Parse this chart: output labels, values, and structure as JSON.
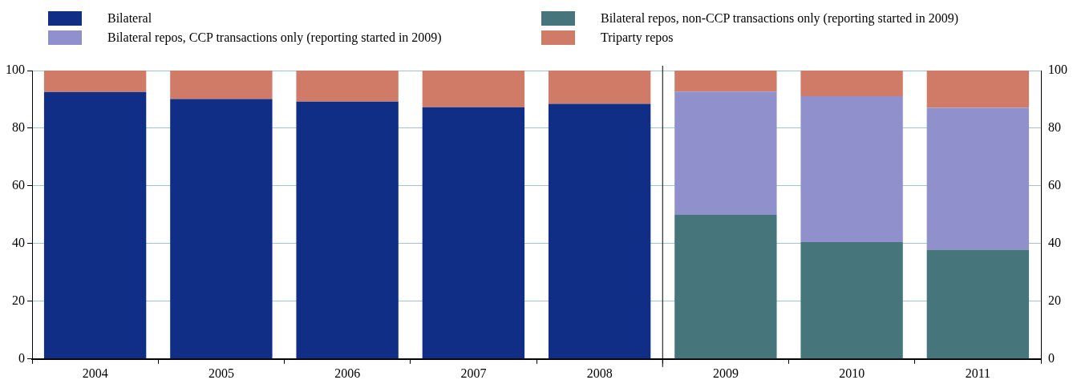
{
  "chart_data": {
    "type": "bar",
    "stacked": true,
    "categories": [
      "2004",
      "2005",
      "2006",
      "2007",
      "2008",
      "2009",
      "2010",
      "2011"
    ],
    "series": [
      {
        "name": "Bilateral",
        "color": "#112e87",
        "values": [
          92.6,
          90.1,
          89.2,
          87.3,
          88.5,
          null,
          null,
          null
        ]
      },
      {
        "name": "Bilateral repos, non-CCP transactions only (reporting started in 2009)",
        "color": "#47757c",
        "values": [
          null,
          null,
          null,
          null,
          null,
          50.0,
          40.5,
          37.9
        ]
      },
      {
        "name": "Bilateral repos, CCP transactions only (reporting started in 2009)",
        "color": "#9090cc",
        "values": [
          null,
          null,
          null,
          null,
          null,
          42.7,
          50.6,
          49.2
        ]
      },
      {
        "name": "Triparty repos",
        "color": "#cf7b67",
        "values": [
          7.4,
          9.9,
          10.8,
          12.7,
          11.5,
          7.3,
          8.9,
          12.9
        ]
      }
    ],
    "ylim": [
      0,
      100
    ],
    "yticks": [
      0,
      20,
      40,
      60,
      80,
      100
    ],
    "y2lim": [
      0,
      100
    ],
    "y2ticks": [
      0,
      20,
      40,
      60,
      80,
      100
    ],
    "grid": "y",
    "legend": "top",
    "ref_lines": [
      {
        "axis": "x",
        "value": "2009",
        "color": "#000000"
      }
    ]
  }
}
